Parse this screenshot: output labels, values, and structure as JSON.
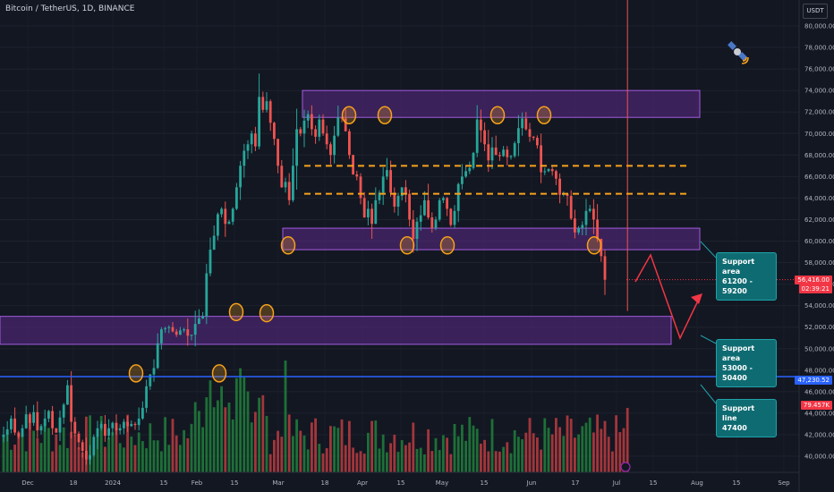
{
  "header": {
    "title": "Bitcoin / TetherUS, 1D, BINANCE",
    "currency": "USDT"
  },
  "colors": {
    "background": "#131722",
    "up": "#26a69a",
    "down": "#ef5350",
    "zone_fill": "#5b2a86",
    "zone_border": "#a35ce0",
    "dashed": "#f7a21b",
    "support_line": "#2962ff",
    "markers": "#f7a21b",
    "arrow": "#f23645"
  },
  "chart_data": {
    "type": "candlestick",
    "y_range": [
      39000,
      82000
    ],
    "y_ticks": [
      "80,000.00",
      "78,000.00",
      "76,000.00",
      "74,000.00",
      "72,000.00",
      "70,000.00",
      "68,000.00",
      "66,000.00",
      "64,000.00",
      "62,000.00",
      "60,000.00",
      "58,000.00",
      "56,000.00",
      "54,000.00",
      "52,000.00",
      "50,000.00",
      "48,000.00",
      "46,000.00",
      "44,000.00",
      "42,000.00",
      "40,000.00"
    ],
    "x_labels": [
      "Dec",
      "18",
      "2024",
      "15",
      "Feb",
      "15",
      "Mar",
      "18",
      "Apr",
      "15",
      "May",
      "15",
      "Jun",
      "17",
      "Jul",
      "15",
      "Aug",
      "15",
      "Sep"
    ],
    "price_path": [
      42000,
      42500,
      43500,
      42200,
      41800,
      42600,
      43900,
      43100,
      44100,
      42400,
      42800,
      43500,
      44200,
      42600,
      42200,
      43600,
      44800,
      46600,
      43200,
      42100,
      41300,
      40500,
      39700,
      40100,
      41800,
      42600,
      43000,
      41900,
      42600,
      43100,
      42400,
      42600,
      43200,
      42800,
      43000,
      42900,
      43500,
      44500,
      46500,
      47600,
      48200,
      50500,
      51800,
      51900,
      52000,
      51600,
      51300,
      51700,
      51800,
      51200,
      51300,
      52300,
      52800,
      53000,
      57000,
      59200,
      60500,
      62500,
      63000,
      61600,
      61800,
      63000,
      65000,
      67000,
      68400,
      69000,
      70000,
      68800,
      73400,
      72200,
      73000,
      71000,
      69500,
      67000,
      65000,
      65500,
      63800,
      67000,
      70400,
      70000,
      71200,
      71800,
      70400,
      69700,
      71300,
      70000,
      69000,
      68000,
      69800,
      71500,
      71400,
      70200,
      68000,
      66200,
      66000,
      64000,
      62200,
      63000,
      61600,
      63800,
      64500,
      66000,
      66600,
      64500,
      63200,
      64200,
      65000,
      64400,
      62000,
      60200,
      61800,
      62400,
      63800,
      62200,
      61200,
      62000,
      63800,
      64000,
      63000,
      61500,
      62800,
      65300,
      66000,
      66500,
      66800,
      68200,
      71300,
      70300,
      69000,
      67500,
      68700,
      68000,
      67900,
      68500,
      67800,
      67900,
      69100,
      70500,
      71400,
      70400,
      69700,
      69600,
      68900,
      66400,
      66500,
      66700,
      66500,
      65800,
      64300,
      64400,
      64200,
      62100,
      60800,
      61200,
      61500,
      62800,
      63000,
      62000,
      60200,
      58600,
      56400
    ],
    "candles": 167,
    "volume_bars": 167,
    "zones": [
      {
        "price_top": 74000,
        "price_bottom": 71500
      },
      {
        "price_top": 61200,
        "price_bottom": 59200
      },
      {
        "price_top": 53000,
        "price_bottom": 50400
      }
    ],
    "dashed_levels": [
      67000,
      64400
    ],
    "support_line": 47400,
    "circles": [
      {
        "candle": 21,
        "price": 47700
      },
      {
        "candle": 34,
        "price": 47700
      },
      {
        "candle": 38,
        "price": 53400
      },
      {
        "candle": 43,
        "price": 53300
      },
      {
        "candle": 45,
        "price": 59600
      },
      {
        "candle": 54,
        "price": 71700
      },
      {
        "candle": 60,
        "price": 71700
      },
      {
        "candle": 64,
        "price": 59600
      },
      {
        "candle": 71,
        "price": 59600
      },
      {
        "candle": 79,
        "price": 71700
      },
      {
        "candle": 87,
        "price": 71700
      },
      {
        "candle": 95,
        "price": 59600
      }
    ],
    "last_price": {
      "value": "56,416.00",
      "countdown": "02:39:21"
    },
    "line_price": "47,230.52",
    "volume_label": "79.457K"
  },
  "callouts": [
    {
      "title": "Support area",
      "value": "61200 - 59200"
    },
    {
      "title": "Support area",
      "value": "53000 - 50400"
    },
    {
      "title": "Support line",
      "value": "47400"
    }
  ]
}
